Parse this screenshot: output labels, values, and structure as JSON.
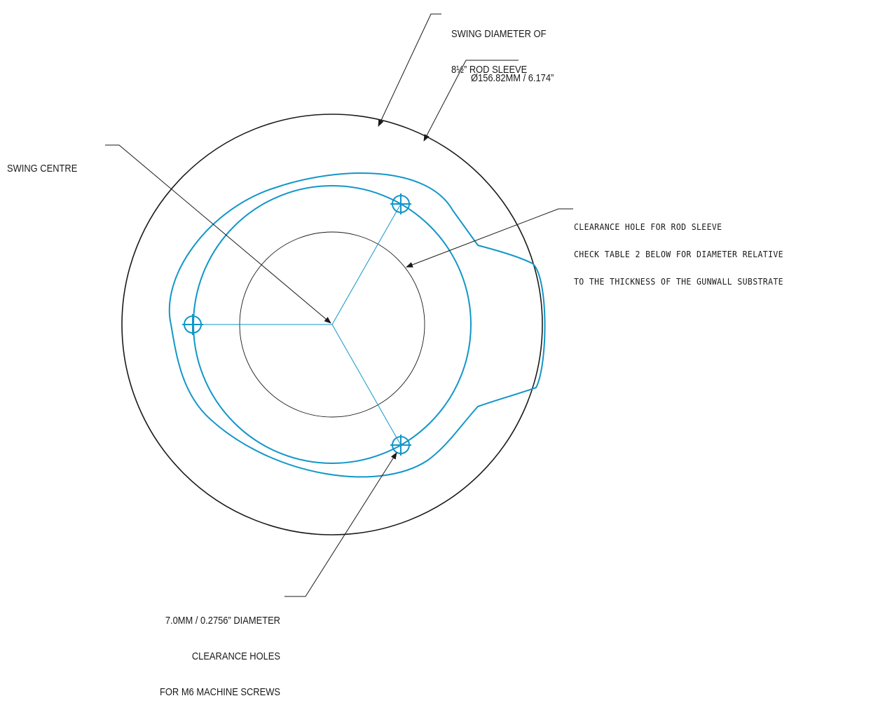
{
  "colors": {
    "line": "#1a1a1a",
    "part": "#1296c9"
  },
  "labels": {
    "swing_diameter": [
      "SWING DIAMETER OF",
      "8½” ROD SLEEVE"
    ],
    "outer_dimension": "Ø156.82MM / 6.174”",
    "swing_centre": "SWING CENTRE",
    "clearance_hole": [
      "CLEARANCE HOLE FOR ROD SLEEVE",
      "CHECK TABLE 2 BELOW FOR DIAMETER RELATIVE",
      "TO THE THICKNESS OF THE GUNWALL SUBSTRATE"
    ],
    "screw_holes": [
      "7.0MM / 0.2756” DIAMETER",
      "CLEARANCE HOLES",
      "FOR M6 MACHINE SCREWS"
    ]
  }
}
